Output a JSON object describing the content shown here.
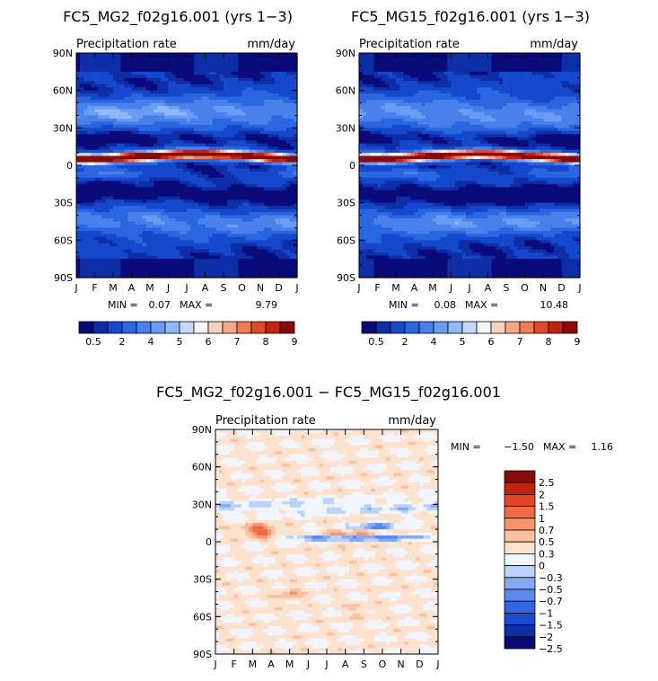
{
  "chart_data": [
    {
      "type": "heatmap",
      "title": "FC5_MG2_f02g16.001 (yrs 1−3)",
      "subtitle_left": "Precipitation rate",
      "subtitle_right": "mm/day",
      "x_ticks": [
        "J",
        "F",
        "M",
        "A",
        "M",
        "J",
        "J",
        "A",
        "S",
        "O",
        "N",
        "D",
        "J"
      ],
      "y_ticks": [
        "90N",
        "60N",
        "30N",
        "0",
        "30S",
        "60S",
        "90S"
      ],
      "y_range": [
        -90,
        90
      ],
      "stats": {
        "min_label": "MIN =",
        "min": "0.07",
        "max_label": "MAX =",
        "max": "9.79"
      },
      "colorbar_labels": [
        "0.5",
        "2",
        "4",
        "5",
        "6",
        "7",
        "8",
        "9"
      ]
    },
    {
      "type": "heatmap",
      "title": "FC5_MG15_f02g16.001 (yrs 1−3)",
      "subtitle_left": "Precipitation rate",
      "subtitle_right": "mm/day",
      "x_ticks": [
        "J",
        "F",
        "M",
        "A",
        "M",
        "J",
        "J",
        "A",
        "S",
        "O",
        "N",
        "D",
        "J"
      ],
      "y_ticks": [
        "90N",
        "60N",
        "30N",
        "0",
        "30S",
        "60S",
        "90S"
      ],
      "y_range": [
        -90,
        90
      ],
      "stats": {
        "min_label": "MIN =",
        "min": "0.08",
        "max_label": "MAX =",
        "max": "10.48"
      },
      "colorbar_labels": [
        "0.5",
        "2",
        "4",
        "5",
        "6",
        "7",
        "8",
        "9"
      ]
    },
    {
      "type": "heatmap",
      "title": "FC5_MG2_f02g16.001 − FC5_MG15_f02g16.001",
      "subtitle_left": "Precipitation rate",
      "subtitle_right": "mm/day",
      "x_ticks": [
        "J",
        "F",
        "M",
        "A",
        "M",
        "J",
        "J",
        "A",
        "S",
        "O",
        "N",
        "D",
        "J"
      ],
      "y_ticks": [
        "90N",
        "60N",
        "30N",
        "0",
        "30S",
        "60S",
        "90S"
      ],
      "y_range": [
        -90,
        90
      ],
      "stats": {
        "min_label": "MIN =",
        "min": "−1.50",
        "max_label": "MAX =",
        "max": "1.16"
      },
      "colorbar_labels": [
        "2.5",
        "2",
        "1.5",
        "1",
        "0.7",
        "0.5",
        "0.3",
        "0",
        "−0.3",
        "−0.5",
        "−0.7",
        "−1",
        "−1.5",
        "−2",
        "−2.5"
      ]
    }
  ],
  "colors": {
    "abs_scale": [
      "#0a0a7a",
      "#0d2ea6",
      "#1548cc",
      "#2a66e0",
      "#4a80ec",
      "#6b9cf3",
      "#93b8f7",
      "#c3d8fa",
      "#f6f6f6",
      "#f9d0bd",
      "#f7a88a",
      "#f07a56",
      "#e04a2a",
      "#c02410",
      "#8a0a0a"
    ],
    "diff_scale": [
      "#0a0a7a",
      "#0d2ea6",
      "#1a4ad0",
      "#3066e4",
      "#5a88ee",
      "#87a8f3",
      "#bcd2f8",
      "#f2f6fc",
      "#fde2cf",
      "#fbc0a0",
      "#f8956e",
      "#f26a44",
      "#e24424",
      "#c02410",
      "#8a0a0a"
    ]
  }
}
